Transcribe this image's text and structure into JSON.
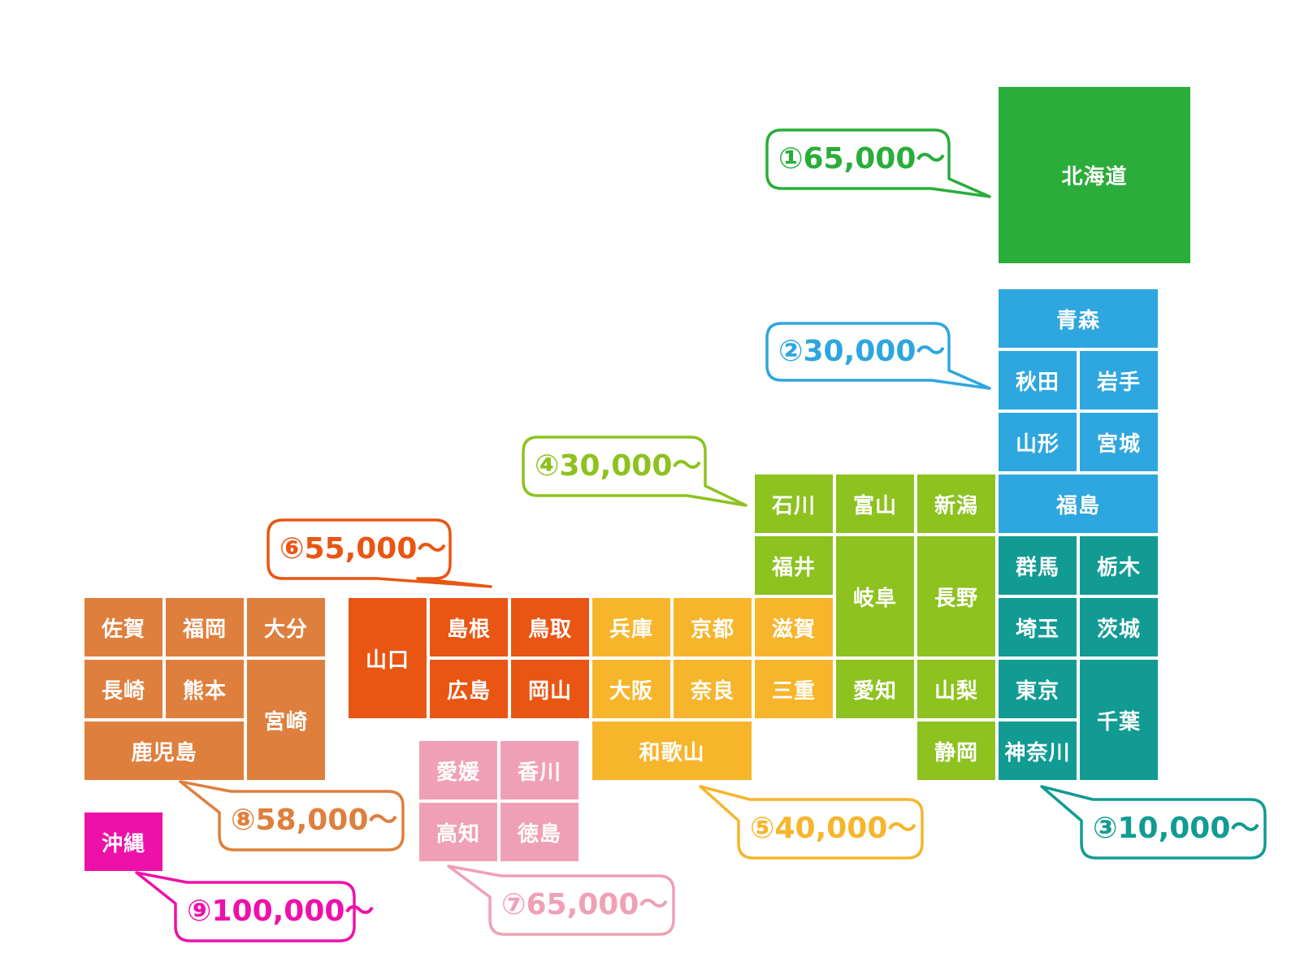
{
  "regions": [
    {
      "id": "hokkaido",
      "color": "#2aad3a",
      "price": "①65,000～",
      "prefectures": [
        {
          "id": "hokkaido",
          "name": "北海道"
        }
      ]
    },
    {
      "id": "tohoku",
      "color": "#2ea6df",
      "price": "②30,000～",
      "prefectures": [
        {
          "id": "aomori",
          "name": "青森"
        },
        {
          "id": "akita",
          "name": "秋田"
        },
        {
          "id": "iwate",
          "name": "岩手"
        },
        {
          "id": "yamagata",
          "name": "山形"
        },
        {
          "id": "miyagi",
          "name": "宮城"
        },
        {
          "id": "fukushima",
          "name": "福島"
        }
      ]
    },
    {
      "id": "kanto",
      "color": "#119b93",
      "price": "③10,000～",
      "prefectures": [
        {
          "id": "gunma",
          "name": "群馬"
        },
        {
          "id": "tochigi",
          "name": "栃木"
        },
        {
          "id": "saitama",
          "name": "埼玉"
        },
        {
          "id": "ibaraki",
          "name": "茨城"
        },
        {
          "id": "tokyo",
          "name": "東京"
        },
        {
          "id": "chiba",
          "name": "千葉"
        },
        {
          "id": "kanagawa",
          "name": "神奈川"
        }
      ]
    },
    {
      "id": "chubu",
      "color": "#8dc21f",
      "price": "④30,000～",
      "prefectures": [
        {
          "id": "ishikawa",
          "name": "石川"
        },
        {
          "id": "toyama",
          "name": "富山"
        },
        {
          "id": "niigata",
          "name": "新潟"
        },
        {
          "id": "fukui",
          "name": "福井"
        },
        {
          "id": "gifu",
          "name": "岐阜"
        },
        {
          "id": "nagano",
          "name": "長野"
        },
        {
          "id": "aichi",
          "name": "愛知"
        },
        {
          "id": "yamanashi",
          "name": "山梨"
        },
        {
          "id": "shizuoka",
          "name": "静岡"
        }
      ]
    },
    {
      "id": "kinki",
      "color": "#f7b52c",
      "price": "⑤40,000～",
      "prefectures": [
        {
          "id": "hyogo",
          "name": "兵庫"
        },
        {
          "id": "kyoto",
          "name": "京都"
        },
        {
          "id": "shiga",
          "name": "滋賀"
        },
        {
          "id": "osaka",
          "name": "大阪"
        },
        {
          "id": "nara",
          "name": "奈良"
        },
        {
          "id": "mie",
          "name": "三重"
        },
        {
          "id": "wakayama",
          "name": "和歌山"
        }
      ]
    },
    {
      "id": "chugoku",
      "color": "#e95513",
      "price": "⑥55,000～",
      "prefectures": [
        {
          "id": "yamaguchi",
          "name": "山口"
        },
        {
          "id": "shimane",
          "name": "島根"
        },
        {
          "id": "tottori",
          "name": "鳥取"
        },
        {
          "id": "hiroshima",
          "name": "広島"
        },
        {
          "id": "okayama",
          "name": "岡山"
        }
      ]
    },
    {
      "id": "shikoku",
      "color": "#f0a0b6",
      "price": "⑦65,000～",
      "prefectures": [
        {
          "id": "ehime",
          "name": "愛媛"
        },
        {
          "id": "kagawa",
          "name": "香川"
        },
        {
          "id": "kochi",
          "name": "高知"
        },
        {
          "id": "tokushima",
          "name": "徳島"
        }
      ]
    },
    {
      "id": "kyushu",
      "color": "#de7f3d",
      "price": "⑧58,000～",
      "prefectures": [
        {
          "id": "saga",
          "name": "佐賀"
        },
        {
          "id": "fukuoka",
          "name": "福岡"
        },
        {
          "id": "oita",
          "name": "大分"
        },
        {
          "id": "nagasaki",
          "name": "長崎"
        },
        {
          "id": "kumamoto",
          "name": "熊本"
        },
        {
          "id": "miyazaki",
          "name": "宮崎"
        },
        {
          "id": "kagoshima",
          "name": "鹿児島"
        }
      ]
    },
    {
      "id": "okinawa",
      "color": "#ee11a9",
      "price": "⑨100,000～",
      "prefectures": [
        {
          "id": "okinawa",
          "name": "沖縄"
        }
      ]
    }
  ]
}
